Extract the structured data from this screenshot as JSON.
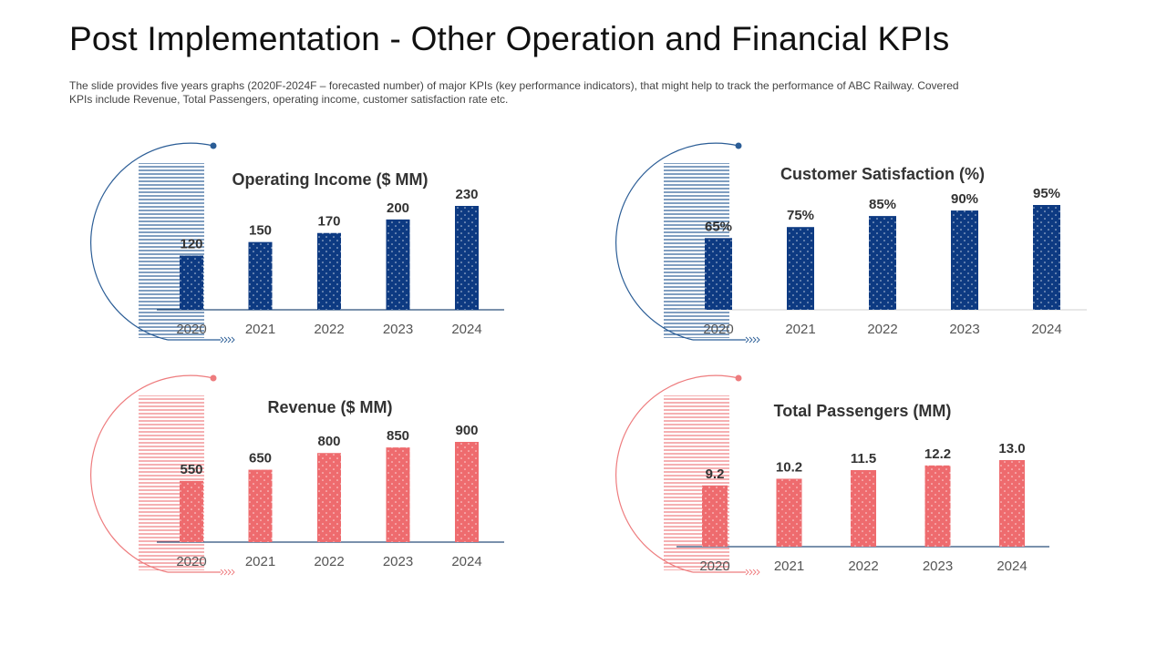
{
  "header": {
    "title": "Post Implementation - Other Operation and Financial KPIs",
    "description": "The slide provides five years graphs (2020F-2024F – forecasted number) of major KPIs (key performance indicators), that might help to track the performance of ABC Railway. Covered KPIs include Revenue, Total Passengers, operating income, customer satisfaction rate etc."
  },
  "colors": {
    "blue": "#0d3a82",
    "red": "#ee6b6e",
    "deco_blue": "#2b5d96",
    "deco_red": "#ee7c7e"
  },
  "chart_data": [
    {
      "id": "operating-income",
      "type": "bar",
      "title": "Operating Income ($ MM)",
      "categories": [
        "2020",
        "2021",
        "2022",
        "2023",
        "2024"
      ],
      "values": [
        120,
        150,
        170,
        200,
        230
      ],
      "labels": [
        "120",
        "150",
        "170",
        "200",
        "230"
      ],
      "ylim": [
        0,
        230
      ],
      "color": "blue"
    },
    {
      "id": "customer-satisfaction",
      "type": "bar",
      "title": "Customer Satisfaction (%)",
      "categories": [
        "2020",
        "2021",
        "2022",
        "2023",
        "2024"
      ],
      "values": [
        65,
        75,
        85,
        90,
        95
      ],
      "labels": [
        "65%",
        "75%",
        "85%",
        "90%",
        "95%"
      ],
      "ylim": [
        0,
        95
      ],
      "color": "blue"
    },
    {
      "id": "revenue",
      "type": "bar",
      "title": "Revenue ($ MM)",
      "categories": [
        "2020",
        "2021",
        "2022",
        "2023",
        "2024"
      ],
      "values": [
        550,
        650,
        800,
        850,
        900
      ],
      "labels": [
        "550",
        "650",
        "800",
        "850",
        "900"
      ],
      "ylim": [
        0,
        900
      ],
      "color": "red"
    },
    {
      "id": "total-passengers",
      "type": "bar",
      "title": "Total Passengers (MM)",
      "categories": [
        "2020",
        "2021",
        "2022",
        "2023",
        "2024"
      ],
      "values": [
        9.2,
        10.2,
        11.5,
        12.2,
        13.0
      ],
      "labels": [
        "9.2",
        "10.2",
        "11.5",
        "12.2",
        "13.0"
      ],
      "ylim": [
        0,
        13.0
      ],
      "color": "red"
    }
  ]
}
